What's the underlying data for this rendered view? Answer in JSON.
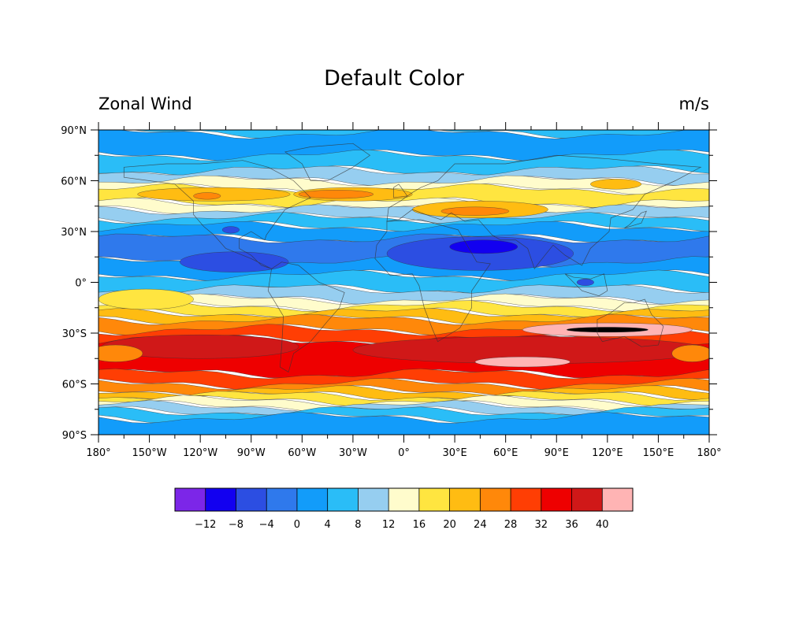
{
  "title": "Default Color",
  "left_label": "Zonal Wind",
  "right_label": "m/s",
  "lat_ticks": [
    {
      "lat": 90,
      "label": "90°N"
    },
    {
      "lat": 60,
      "label": "60°N"
    },
    {
      "lat": 30,
      "label": "30°N"
    },
    {
      "lat": 0,
      "label": "0°"
    },
    {
      "lat": -30,
      "label": "30°S"
    },
    {
      "lat": -60,
      "label": "60°S"
    },
    {
      "lat": -90,
      "label": "90°S"
    }
  ],
  "lon_ticks": [
    {
      "lon": -180,
      "label": "180°"
    },
    {
      "lon": -150,
      "label": "150°W"
    },
    {
      "lon": -120,
      "label": "120°W"
    },
    {
      "lon": -90,
      "label": "90°W"
    },
    {
      "lon": -60,
      "label": "60°W"
    },
    {
      "lon": -30,
      "label": "30°W"
    },
    {
      "lon": 0,
      "label": "0°"
    },
    {
      "lon": 30,
      "label": "30°E"
    },
    {
      "lon": 60,
      "label": "60°E"
    },
    {
      "lon": 90,
      "label": "90°E"
    },
    {
      "lon": 120,
      "label": "120°E"
    },
    {
      "lon": 150,
      "label": "150°E"
    },
    {
      "lon": 180,
      "label": "180°"
    }
  ],
  "colorbar": {
    "colors": [
      "#7c26e8",
      "#1200f0",
      "#2c4ee2",
      "#2f79ec",
      "#129cfa",
      "#2abdf7",
      "#96cef0",
      "#fffccc",
      "#ffe540",
      "#ffbc12",
      "#ff880a",
      "#ff3e04",
      "#ee0000",
      "#d01818",
      "#ffb4b4"
    ],
    "labels": [
      "−12",
      "−8",
      "−4",
      "0",
      "4",
      "8",
      "12",
      "16",
      "20",
      "24",
      "28",
      "32",
      "36",
      "40"
    ]
  },
  "bands": [
    {
      "band": 5,
      "start": 90,
      "end": 88
    },
    {
      "band": 4,
      "start": 88,
      "end": 75
    },
    {
      "band": 5,
      "start": 75,
      "end": 66
    },
    {
      "band": 6,
      "start": 66,
      "end": 60
    },
    {
      "band": 7,
      "start": 60,
      "end": 55
    },
    {
      "band": 8,
      "start": 55,
      "end": 47
    },
    {
      "band": 7,
      "start": 47,
      "end": 43
    },
    {
      "band": 6,
      "start": 43,
      "end": 38
    },
    {
      "band": 5,
      "start": 38,
      "end": 33
    },
    {
      "band": 4,
      "start": 33,
      "end": 26
    },
    {
      "band": 3,
      "start": 26,
      "end": 12
    },
    {
      "band": 4,
      "start": 12,
      "end": 4
    },
    {
      "band": 5,
      "start": 4,
      "end": -4
    },
    {
      "band": 6,
      "start": -4,
      "end": -10
    },
    {
      "band": 7,
      "start": -10,
      "end": -14
    },
    {
      "band": 8,
      "start": -14,
      "end": -18
    },
    {
      "band": 9,
      "start": -18,
      "end": -22
    },
    {
      "band": 10,
      "start": -22,
      "end": -28
    },
    {
      "band": 11,
      "start": -28,
      "end": -34
    },
    {
      "band": 12,
      "start": -34,
      "end": -54
    },
    {
      "band": 11,
      "start": -54,
      "end": -60
    },
    {
      "band": 10,
      "start": -60,
      "end": -64
    },
    {
      "band": 9,
      "start": -64,
      "end": -67
    },
    {
      "band": 8,
      "start": -67,
      "end": -70
    },
    {
      "band": 7,
      "start": -70,
      "end": -73
    },
    {
      "band": 6,
      "start": -73,
      "end": -76
    },
    {
      "band": 5,
      "start": -76,
      "end": -80
    },
    {
      "band": 4,
      "start": -80,
      "end": -90
    }
  ],
  "blobs": [
    {
      "band": 2,
      "lon": -100,
      "lat": 12,
      "rlon": 32,
      "rlat": 6
    },
    {
      "band": 2,
      "lon": -102,
      "lat": 31,
      "rlon": 5,
      "rlat": 2
    },
    {
      "band": 2,
      "lon": 45,
      "lat": 17,
      "rlon": 55,
      "rlat": 10
    },
    {
      "band": 1,
      "lon": 47,
      "lat": 21,
      "rlon": 20,
      "rlat": 4
    },
    {
      "band": 2,
      "lon": 107,
      "lat": 0,
      "rlon": 5,
      "rlat": 2
    },
    {
      "band": 8,
      "lon": -152,
      "lat": -10,
      "rlon": 28,
      "rlat": 6
    },
    {
      "band": 9,
      "lon": -112,
      "lat": 52,
      "rlon": 45,
      "rlat": 4
    },
    {
      "band": 9,
      "lon": -30,
      "lat": 52,
      "rlon": 35,
      "rlat": 4
    },
    {
      "band": 10,
      "lon": -40,
      "lat": 52,
      "rlon": 22,
      "rlat": 2.5
    },
    {
      "band": 10,
      "lon": -116,
      "lat": 51,
      "rlon": 8,
      "rlat": 2
    },
    {
      "band": 9,
      "lon": 45,
      "lat": 43,
      "rlon": 40,
      "rlat": 5
    },
    {
      "band": 10,
      "lon": 42,
      "lat": 42,
      "rlon": 20,
      "rlat": 2.5
    },
    {
      "band": 9,
      "lon": 125,
      "lat": 58,
      "rlon": 15,
      "rlat": 3
    },
    {
      "band": 13,
      "lon": -120,
      "lat": -38,
      "rlon": 58,
      "rlat": 7
    },
    {
      "band": 13,
      "lon": 75,
      "lat": -40,
      "rlon": 105,
      "rlat": 8
    },
    {
      "band": 14,
      "lon": 70,
      "lat": -47,
      "rlon": 28,
      "rlat": 3
    },
    {
      "band": 14,
      "lon": 120,
      "lat": -28,
      "rlon": 50,
      "rlat": 4
    },
    {
      "band": 15,
      "lon": 120,
      "lat": -28,
      "rlon": 24,
      "rlat": 1.5
    },
    {
      "band": 10,
      "lon": -170,
      "lat": -42,
      "rlon": 16,
      "rlat": 5
    },
    {
      "band": 10,
      "lon": 170,
      "lat": -42,
      "rlon": 12,
      "rlat": 5
    }
  ]
}
